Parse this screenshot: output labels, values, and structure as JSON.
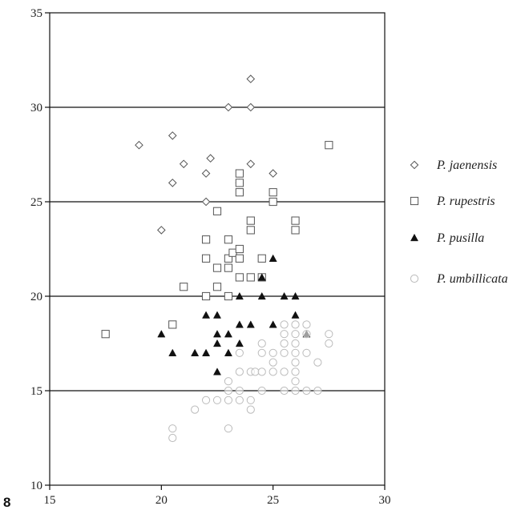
{
  "page": {
    "panel_label": "8"
  },
  "chart_data": {
    "type": "scatter",
    "title": "",
    "xlabel": "",
    "ylabel": "",
    "xlim": [
      15,
      30
    ],
    "ylim": [
      10,
      35
    ],
    "x_ticks": [
      15,
      20,
      25,
      30
    ],
    "y_ticks": [
      10,
      15,
      20,
      25,
      30,
      35
    ],
    "grid": "horizontal lines at y = 15, 20, 25, 30",
    "legend_placement": "right",
    "series": [
      {
        "name": "P. jaenensis",
        "marker": "diamond-open",
        "color": "#555555",
        "points": [
          [
            19,
            28
          ],
          [
            20,
            23.5
          ],
          [
            20.5,
            26
          ],
          [
            20.5,
            28.5
          ],
          [
            21,
            27
          ],
          [
            22,
            25
          ],
          [
            22,
            26.5
          ],
          [
            22.2,
            27.3
          ],
          [
            23,
            30
          ],
          [
            23.5,
            26
          ],
          [
            24,
            30
          ],
          [
            24,
            31.5
          ],
          [
            24,
            27
          ],
          [
            25,
            26.5
          ]
        ]
      },
      {
        "name": "P. rupestris",
        "marker": "square-open",
        "color": "#555555",
        "points": [
          [
            17.5,
            18
          ],
          [
            20.5,
            18.5
          ],
          [
            21,
            20.5
          ],
          [
            22,
            20
          ],
          [
            22,
            22
          ],
          [
            22,
            23
          ],
          [
            22.5,
            20.5
          ],
          [
            22.5,
            21.5
          ],
          [
            22.5,
            24.5
          ],
          [
            23,
            20
          ],
          [
            23,
            21.5
          ],
          [
            23,
            22
          ],
          [
            23,
            23
          ],
          [
            23.2,
            22.3
          ],
          [
            23.5,
            21
          ],
          [
            23.5,
            22
          ],
          [
            23.5,
            22.5
          ],
          [
            23.5,
            25.5
          ],
          [
            23.5,
            26
          ],
          [
            23.5,
            26.5
          ],
          [
            24,
            21
          ],
          [
            24,
            23.5
          ],
          [
            24,
            24
          ],
          [
            24.5,
            21
          ],
          [
            24.5,
            22
          ],
          [
            25,
            25
          ],
          [
            25,
            25.5
          ],
          [
            26,
            23.5
          ],
          [
            26,
            24
          ],
          [
            27.5,
            28
          ]
        ]
      },
      {
        "name": "P. pusilla",
        "marker": "triangle-filled",
        "color": "#111111",
        "points": [
          [
            20,
            18
          ],
          [
            20.5,
            17
          ],
          [
            21.5,
            17
          ],
          [
            22,
            17
          ],
          [
            22,
            19
          ],
          [
            22.5,
            16
          ],
          [
            22.5,
            17.5
          ],
          [
            22.5,
            18
          ],
          [
            22.5,
            19
          ],
          [
            23,
            17
          ],
          [
            23,
            18
          ],
          [
            23.5,
            17.5
          ],
          [
            23.5,
            18.5
          ],
          [
            23.5,
            20
          ],
          [
            24,
            18.5
          ],
          [
            24.5,
            20
          ],
          [
            24.5,
            21
          ],
          [
            25,
            18.5
          ],
          [
            25,
            22
          ],
          [
            25.5,
            20
          ],
          [
            26,
            19
          ],
          [
            26,
            20
          ],
          [
            26.5,
            18
          ]
        ]
      },
      {
        "name": "P. umbillicata",
        "marker": "circle-open",
        "color": "#bbbbbb",
        "points": [
          [
            20.5,
            12.5
          ],
          [
            20.5,
            13
          ],
          [
            21.5,
            14
          ],
          [
            22,
            14.5
          ],
          [
            22.5,
            14.5
          ],
          [
            23,
            13
          ],
          [
            23,
            14.5
          ],
          [
            23,
            15
          ],
          [
            23,
            15.5
          ],
          [
            23.5,
            14.5
          ],
          [
            23.5,
            15
          ],
          [
            23.5,
            16
          ],
          [
            23.5,
            17
          ],
          [
            24,
            14
          ],
          [
            24,
            14.5
          ],
          [
            24,
            16
          ],
          [
            24.2,
            16
          ],
          [
            24.5,
            15
          ],
          [
            24.5,
            16
          ],
          [
            24.5,
            17
          ],
          [
            24.5,
            17.5
          ],
          [
            25,
            16
          ],
          [
            25,
            16.5
          ],
          [
            25,
            17
          ],
          [
            25.5,
            15
          ],
          [
            25.5,
            16
          ],
          [
            25.5,
            17
          ],
          [
            25.5,
            17.5
          ],
          [
            25.5,
            18
          ],
          [
            25.5,
            18.5
          ],
          [
            26,
            15
          ],
          [
            26,
            15.5
          ],
          [
            26,
            16
          ],
          [
            26,
            16.5
          ],
          [
            26,
            17
          ],
          [
            26,
            17.5
          ],
          [
            26,
            18
          ],
          [
            26,
            18.5
          ],
          [
            26.5,
            15
          ],
          [
            26.5,
            17
          ],
          [
            26.5,
            18
          ],
          [
            26.5,
            18.5
          ],
          [
            27,
            15
          ],
          [
            27,
            16.5
          ],
          [
            27.5,
            17.5
          ],
          [
            27.5,
            18
          ]
        ]
      }
    ]
  }
}
